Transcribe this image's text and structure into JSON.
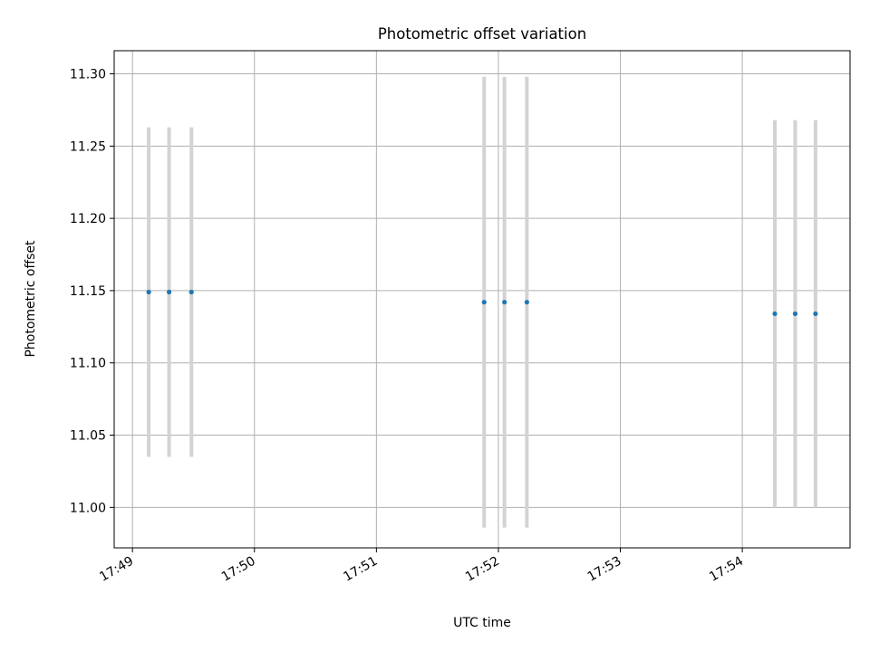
{
  "chart_data": {
    "type": "scatter",
    "title": "Photometric offset variation",
    "xlabel": "UTC time",
    "ylabel": "Photometric offset",
    "x_tick_labels": [
      "17:49",
      "17:50",
      "17:51",
      "17:52",
      "17:53",
      "17:54"
    ],
    "y_tick_labels": [
      "11.00",
      "11.05",
      "11.10",
      "11.15",
      "11.20",
      "11.25",
      "11.30"
    ],
    "xlim": [
      "17:48:51",
      "17:54:53"
    ],
    "ylim": [
      10.972,
      11.316
    ],
    "grid": true,
    "marker_color": "#1f77b4",
    "errorbar_color": "#d3d3d3",
    "points": [
      {
        "x": "17:49:08",
        "y": 11.149,
        "yerr": 0.114
      },
      {
        "x": "17:49:18",
        "y": 11.149,
        "yerr": 0.114
      },
      {
        "x": "17:49:29",
        "y": 11.149,
        "yerr": 0.114
      },
      {
        "x": "17:51:53",
        "y": 11.142,
        "yerr": 0.156
      },
      {
        "x": "17:52:03",
        "y": 11.142,
        "yerr": 0.156
      },
      {
        "x": "17:52:14",
        "y": 11.142,
        "yerr": 0.156
      },
      {
        "x": "17:54:16",
        "y": 11.134,
        "yerr": 0.134
      },
      {
        "x": "17:54:26",
        "y": 11.134,
        "yerr": 0.134
      },
      {
        "x": "17:54:36",
        "y": 11.134,
        "yerr": 0.134
      }
    ]
  }
}
